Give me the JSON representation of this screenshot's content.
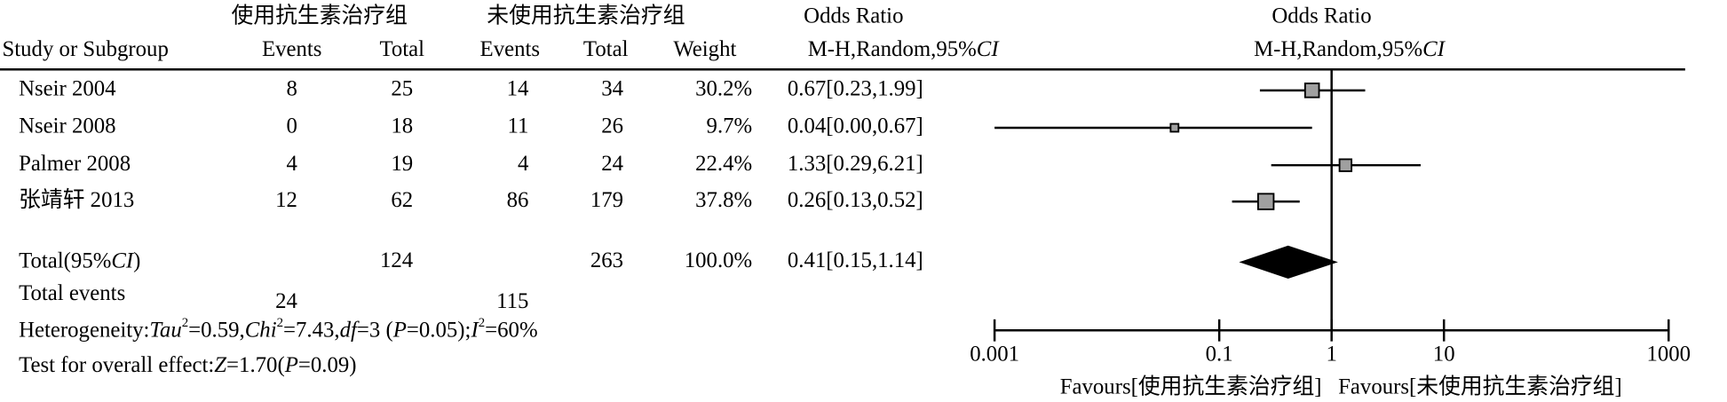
{
  "chart_data": {
    "type": "forest",
    "group_headers": [
      "使用抗生素治疗组",
      "未使用抗生素治疗组"
    ],
    "or_header": [
      "Odds Ratio",
      "M-H,Random,95%",
      "CI"
    ],
    "plot_header": [
      "Odds Ratio",
      "M-H,Random,95%",
      "CI"
    ],
    "columns": [
      "Study or Subgroup",
      "Events",
      "Total",
      "Events",
      "Total",
      "Weight"
    ],
    "studies": [
      "Nseir 2004",
      "Nseir 2008",
      "Palmer 2008",
      "张靖轩 2013"
    ],
    "events_1": [
      8,
      0,
      4,
      12
    ],
    "total_1": [
      25,
      18,
      19,
      62
    ],
    "events_2": [
      14,
      11,
      4,
      86
    ],
    "total_2": [
      34,
      26,
      24,
      179
    ],
    "weights": [
      30.2,
      9.7,
      22.4,
      37.8
    ],
    "weight_labels": [
      "30.2%",
      "9.7%",
      "22.4%",
      "37.8%"
    ],
    "or": [
      0.67,
      0.04,
      1.33,
      0.26
    ],
    "ci_lower": [
      0.23,
      0,
      0.29,
      0.13
    ],
    "ci_upper": [
      1.99,
      0.67,
      6.21,
      0.52
    ],
    "or_labels": [
      "0.67[0.23,1.99]",
      "0.04[0.00,0.67]",
      "1.33[0.29,6.21]",
      "0.26[0.13,0.52]"
    ],
    "total": {
      "label": [
        "Total(95%",
        "CI",
        ")"
      ],
      "total_1": 124,
      "total_2": 263,
      "weight": 100.0,
      "weight_label": "100.0%",
      "or": 0.41,
      "ci_lower": 0.15,
      "ci_upper": 1.14,
      "or_label": "0.41[0.15,1.14]"
    },
    "total_events": {
      "label": "Total events",
      "events_1": 24,
      "events_2": 115
    },
    "heterogeneity": [
      "Heterogeneity:",
      "Tau",
      "2",
      "=0.59,",
      "Chi",
      "2",
      "=7.43,",
      "df",
      "=3 (",
      "P",
      "=0.05);",
      "I",
      "2",
      "=60%"
    ],
    "overall_effect": [
      "Test for overall effect:",
      "Z",
      "=1.70(",
      "P",
      "=0.09)"
    ],
    "xlim": [
      0.001,
      1000
    ],
    "xticks": [
      0.001,
      0.1,
      1,
      10,
      1000
    ],
    "log_x": true,
    "favours": [
      "Favours[使用抗生素治疗组]",
      "Favours[未使用抗生素治疗组]"
    ],
    "box_color": "#a0a0a0"
  }
}
